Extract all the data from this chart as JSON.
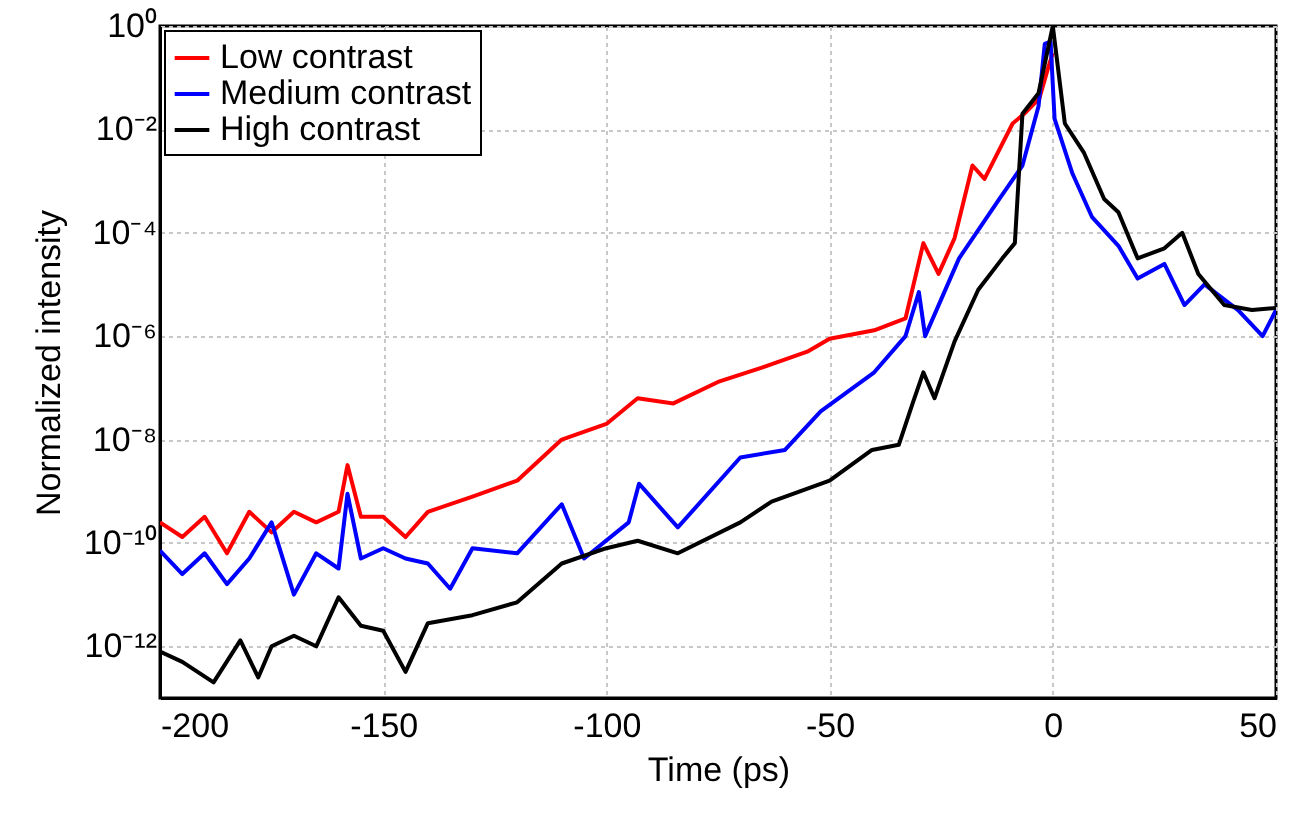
{
  "chart_data": {
    "type": "line",
    "xlabel": "Time (ps)",
    "ylabel": "Normalized intensity",
    "log": "y",
    "grid": true,
    "legend": "top left",
    "line_style": "solid",
    "marker": "none",
    "xlim": [
      -200,
      50
    ],
    "xticks": [
      -200,
      -150,
      -100,
      -50,
      0,
      50
    ],
    "ylim": [
      1e-13,
      1
    ],
    "yticks": [
      {
        "value": 1,
        "label": "10⁰"
      },
      {
        "value": 0.01,
        "label": "10⁻²"
      },
      {
        "value": 0.0001,
        "label": "10⁻⁴"
      },
      {
        "value": 1e-06,
        "label": "10⁻⁶"
      },
      {
        "value": 1e-08,
        "label": "10⁻⁸"
      },
      {
        "value": 1e-10,
        "label": "10⁻¹⁰"
      },
      {
        "value": 1e-12,
        "label": "10⁻¹²"
      }
    ],
    "series": [
      {
        "name": "Low contrast",
        "color": "#ff0000",
        "x": [
          -200,
          -195,
          -190,
          -185,
          -180,
          -175,
          -170,
          -165,
          -160,
          -158,
          -155,
          -150,
          -145,
          -140,
          -130,
          -120,
          -110,
          -100,
          -93,
          -85,
          -75,
          -65,
          -55,
          -50,
          -40,
          -33,
          -29,
          -25.6,
          -22,
          -18,
          -15.3,
          -9,
          -6.4,
          -3,
          -1,
          0
        ],
        "values": [
          2.5e-10,
          1.3e-10,
          3.2e-10,
          6.3e-11,
          4e-10,
          1.6e-10,
          4e-10,
          2.5e-10,
          4e-10,
          3.2e-09,
          3.2e-10,
          3.2e-10,
          1.3e-10,
          4e-10,
          7.9e-10,
          1.6e-09,
          1e-08,
          2e-08,
          6.3e-08,
          5e-08,
          1.3e-07,
          2.5e-07,
          5e-07,
          8.9e-07,
          1.3e-06,
          2.2e-06,
          6.3e-05,
          1.6e-05,
          7.9e-05,
          0.002,
          0.0011,
          0.013,
          0.02,
          0.04,
          0.16,
          0.3
        ]
      },
      {
        "name": "Medium contrast",
        "color": "#0000ff",
        "x": [
          -200,
          -195,
          -190,
          -185,
          -180,
          -175,
          -170,
          -165,
          -160,
          -158,
          -155,
          -150,
          -145,
          -140,
          -135,
          -130,
          -120,
          -110,
          -105,
          -95,
          -92.7,
          -84,
          -70,
          -60,
          -52,
          -40,
          -33,
          -30,
          -28.6,
          -21,
          -12,
          -6.8,
          -3.2,
          -1.8,
          -0.5,
          0.4,
          4.4,
          8.8,
          14.7,
          19,
          25,
          29.5,
          34,
          41.5,
          47,
          50
        ],
        "values": [
          7.1e-11,
          2.5e-11,
          6.3e-11,
          1.6e-11,
          5e-11,
          2.5e-10,
          1e-11,
          6.3e-11,
          3.2e-11,
          8.9e-10,
          5e-11,
          7.9e-11,
          5e-11,
          4e-11,
          1.3e-11,
          7.9e-11,
          6.3e-11,
          5.6e-10,
          5e-11,
          2.5e-10,
          1.4e-09,
          2e-10,
          4.5e-09,
          6.3e-09,
          3.5e-08,
          2e-07,
          1e-06,
          7.1e-06,
          1e-06,
          3.2e-05,
          0.00045,
          0.002,
          0.028,
          0.45,
          0.5,
          0.016,
          0.0014,
          0.0002,
          5.6e-05,
          1.3e-05,
          2.5e-05,
          4e-06,
          1e-05,
          3.2e-06,
          1e-06,
          3.2e-06
        ]
      },
      {
        "name": "High contrast",
        "color": "#000000",
        "x": [
          -200,
          -195,
          -188,
          -182,
          -178,
          -175,
          -170,
          -165,
          -160,
          -155,
          -150,
          -145,
          -140,
          -130,
          -120,
          -110,
          -100,
          -93,
          -84,
          -70,
          -63,
          -50,
          -40.5,
          -34.5,
          -31.4,
          -29,
          -26.5,
          -22,
          -16.7,
          -11.3,
          -8.5,
          -6.8,
          -3.2,
          0,
          2.7,
          7,
          11.5,
          14.7,
          19,
          25,
          29,
          32.6,
          38.4,
          44.6,
          50
        ],
        "values": [
          7.9e-13,
          5e-13,
          2e-13,
          1.3e-12,
          2.5e-13,
          1e-12,
          1.6e-12,
          1e-12,
          8.9e-12,
          2.5e-12,
          2e-12,
          3.2e-13,
          2.8e-12,
          4e-12,
          7.1e-12,
          4e-11,
          7.9e-11,
          1.1e-10,
          6.3e-11,
          2.5e-10,
          6.3e-10,
          1.6e-09,
          6.3e-09,
          7.9e-09,
          5e-08,
          2e-07,
          6.3e-08,
          7.9e-07,
          7.9e-06,
          3.2e-05,
          6.3e-05,
          0.02,
          0.05,
          1,
          0.013,
          0.0035,
          0.00045,
          0.00025,
          3.2e-05,
          5e-05,
          0.0001,
          1.6e-05,
          4e-06,
          3.2e-06,
          3.5e-06
        ]
      }
    ]
  }
}
